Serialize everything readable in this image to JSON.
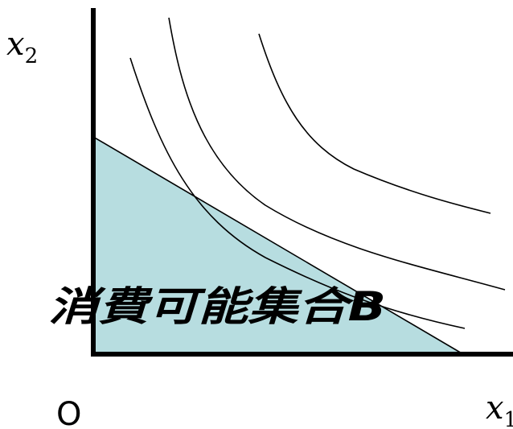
{
  "labels": {
    "y_axis_var": "x",
    "y_axis_sub": "2",
    "x_axis_var": "x",
    "x_axis_sub": "1",
    "origin": "O",
    "set_label": "消費可能集合B"
  },
  "colors": {
    "budget_set_fill": "#b7dde0",
    "axes": "#000000",
    "curves": "#000000"
  }
}
